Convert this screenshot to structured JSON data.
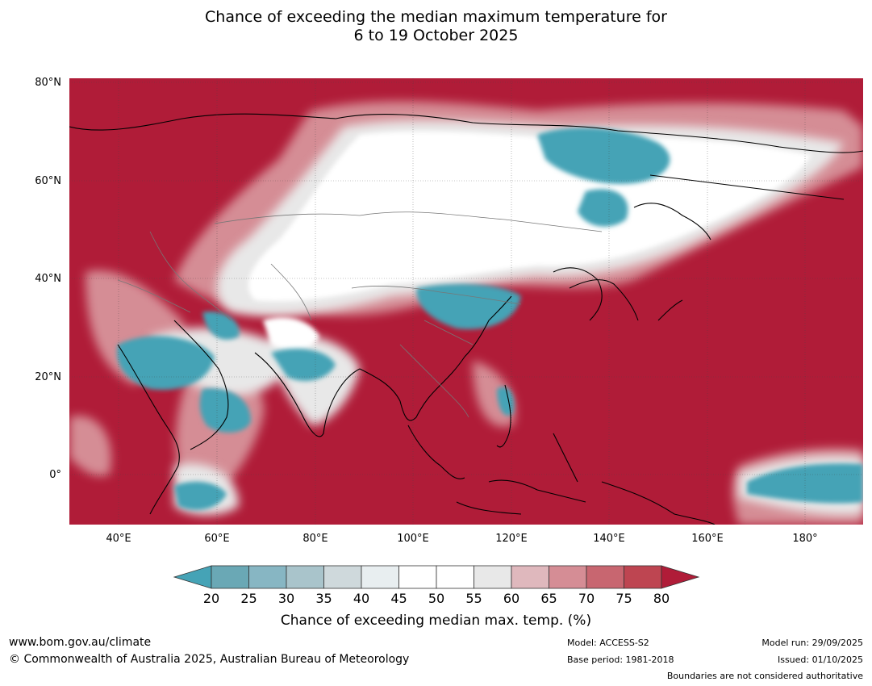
{
  "title": {
    "line1": "Chance of exceeding the median maximum temperature for",
    "line2": "6 to 19 October 2025"
  },
  "map": {
    "lat_labels": [
      "80°N",
      "60°N",
      "40°N",
      "20°N",
      "0°"
    ],
    "lon_labels": [
      "40°E",
      "60°E",
      "80°E",
      "100°E",
      "120°E",
      "140°E",
      "160°E",
      "180°"
    ],
    "lat_range": [
      -10,
      80
    ],
    "lon_range": [
      30,
      192
    ]
  },
  "colorbar": {
    "ticks": [
      "20",
      "25",
      "30",
      "35",
      "40",
      "45",
      "50",
      "55",
      "60",
      "65",
      "70",
      "75",
      "80"
    ],
    "colors": [
      "#45a3b6",
      "#6aa8b5",
      "#87b6c3",
      "#a9c4cb",
      "#cfd9dc",
      "#e8eef0",
      "#ffffff",
      "#ffffff",
      "#e8e8e8",
      "#dfb8bd",
      "#d58d95",
      "#c86670",
      "#be4551",
      "#b01c38"
    ],
    "label": "Chance of exceeding median max. temp. (%)"
  },
  "footer": {
    "url": "www.bom.gov.au/climate",
    "copyright": "© Commonwealth of Australia 2025, Australian Bureau of Meteorology",
    "model": "Model: ACCESS-S2",
    "base_period": "Base period: 1981-2018",
    "model_run": "Model run: 29/09/2025",
    "issued": "Issued: 01/10/2025",
    "disclaimer": "Boundaries are not considered authoritative"
  }
}
